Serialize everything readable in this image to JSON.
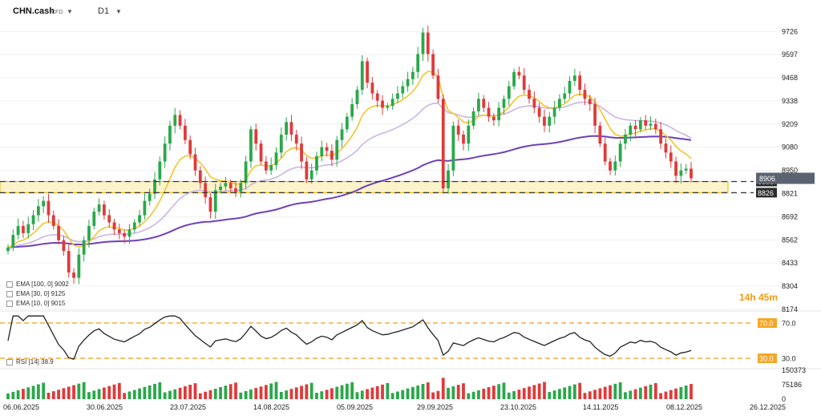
{
  "header": {
    "symbol": "CHN.cash",
    "symbol_sub": "CFD",
    "timeframe": "D1",
    "caret": "▼"
  },
  "timer": "14h 45m",
  "colors": {
    "up": "#2aa84a",
    "down": "#e03a3a",
    "ema10": "#f4c430",
    "ema30": "#c9b6e4",
    "ema100": "#7040b8",
    "zone_fill": "#fbeaa0",
    "zone_border": "#e8b400",
    "rsi_line": "#222222",
    "level_dash": "#f39c12"
  },
  "chart_data": [
    {
      "type": "candlestick",
      "title": "CHN.cash",
      "xlabel": "",
      "ylabel": "",
      "ylim": [
        8174,
        9790
      ],
      "price_ticks": [
        9726,
        9597,
        9468,
        9338,
        9209,
        9080,
        8950,
        8821,
        8692,
        8562,
        8433,
        8304,
        8174
      ],
      "date_labels": [
        "06.06.2025",
        "30.06.2025",
        "23.07.2025",
        "14.08.2025",
        "05.09.2025",
        "29.09.2025",
        "23.10.2025",
        "14.11.2025",
        "08.12.2025",
        "26.12.2025"
      ],
      "current_price": 8906,
      "support_zone": {
        "low": 8826,
        "high": 8888
      },
      "levels": [
        {
          "value": 8888,
          "label": "8888"
        },
        {
          "value": 8826,
          "label": "8826"
        }
      ],
      "indicators": [
        {
          "name": "EMA [100, 0]",
          "last": 9092,
          "label": "EMA [100, 0] 9092"
        },
        {
          "name": "EMA [30, 0]",
          "last": 9125,
          "label": "EMA [30, 0] 9125"
        },
        {
          "name": "EMA [10, 0]",
          "last": 9015,
          "label": "EMA [10, 0] 9015"
        }
      ],
      "closes": [
        8520,
        8590,
        8640,
        8600,
        8650,
        8700,
        8750,
        8780,
        8700,
        8640,
        8560,
        8500,
        8380,
        8350,
        8480,
        8560,
        8640,
        8720,
        8760,
        8700,
        8660,
        8620,
        8600,
        8580,
        8620,
        8660,
        8700,
        8780,
        8820,
        8900,
        9000,
        9100,
        9200,
        9260,
        9200,
        9120,
        9040,
        8950,
        8880,
        8800,
        8720,
        8840,
        8860,
        8880,
        8850,
        8830,
        8880,
        9000,
        9180,
        9100,
        9000,
        8950,
        8980,
        9050,
        9150,
        9220,
        9150,
        9100,
        9000,
        8900,
        8950,
        9030,
        9080,
        9060,
        9010,
        9120,
        9180,
        9250,
        9320,
        9400,
        9560,
        9440,
        9380,
        9340,
        9300,
        9310,
        9350,
        9380,
        9420,
        9460,
        9500,
        9600,
        9720,
        9600,
        9480,
        9350,
        8850,
        8950,
        9200,
        9150,
        9100,
        9200,
        9280,
        9350,
        9300,
        9250,
        9230,
        9300,
        9350,
        9420,
        9500,
        9480,
        9400,
        9350,
        9300,
        9250,
        9200,
        9250,
        9300,
        9350,
        9380,
        9450,
        9480,
        9400,
        9350,
        9320,
        9200,
        9100,
        9000,
        8950,
        9000,
        9100,
        9150,
        9200,
        9180,
        9230,
        9200,
        9210,
        9180,
        9100,
        9050,
        9000,
        8920,
        8950,
        8960,
        8906
      ]
    },
    {
      "type": "line",
      "title": "RSI [14]",
      "label": "RSI [14] 38.9",
      "last": 38.9,
      "ylim": [
        20,
        80
      ],
      "levels": [
        70.0,
        30.0
      ],
      "level_labels": [
        "70.0",
        "30.0"
      ]
    },
    {
      "type": "bar",
      "title": "Volume",
      "ylim": [
        0,
        150373
      ],
      "ticks": [
        150373,
        75186,
        0
      ]
    }
  ]
}
